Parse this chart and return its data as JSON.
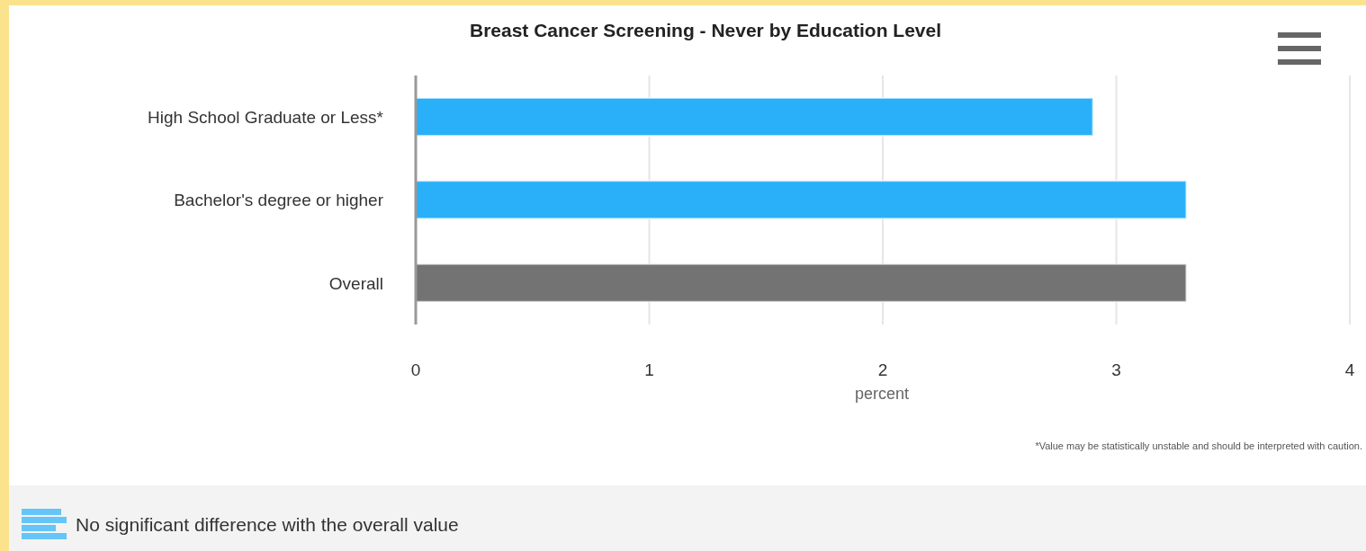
{
  "chart_data": {
    "type": "bar",
    "orientation": "horizontal",
    "title": "Breast Cancer Screening - Never by Education Level",
    "categories": [
      "High School Graduate or Less*",
      "Bachelor's degree or higher",
      "Overall"
    ],
    "values": [
      2.9,
      3.3,
      3.3
    ],
    "colors": [
      "#29b0f9",
      "#29b0f9",
      "#737373"
    ],
    "xlabel": "percent",
    "xlim": [
      0,
      4
    ],
    "xticks": [
      0,
      1,
      2,
      3,
      4
    ],
    "grid": "x",
    "annotations": [
      "*Value may be statistically unstable and should be interpreted with caution.",
      "No significant difference with the overall value"
    ]
  }
}
